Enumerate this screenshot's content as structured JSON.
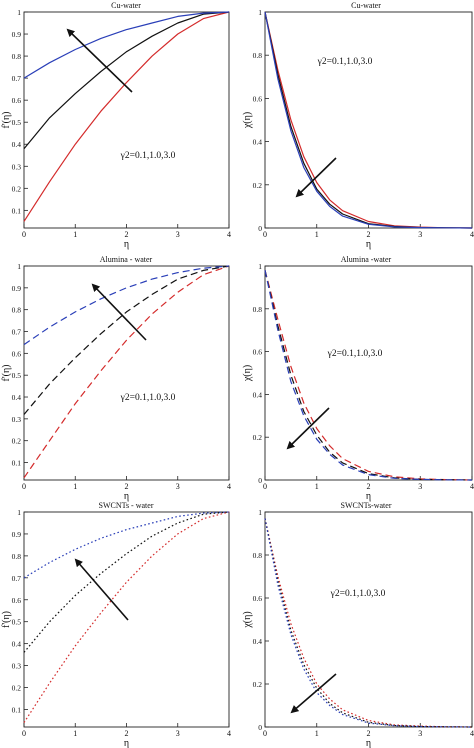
{
  "chart_data": [
    {
      "type": "line",
      "title": "Cu-water",
      "ylabel": "f'(η)",
      "xlabel": "η",
      "annotation": "γ2=0.1,1.0,3.0",
      "linestyle": "solid",
      "xlim": [
        0,
        4
      ],
      "ylim": [
        0.02,
        1.0
      ],
      "xticks": [
        "0",
        "1",
        "2",
        "3",
        "4"
      ],
      "yticks": [
        "0.1",
        "0.2",
        "0.3",
        "0.4",
        "0.5",
        "0.6",
        "0.7",
        "0.8",
        "0.9",
        "1"
      ],
      "arrow_direction": "increasing",
      "x": [
        0,
        0.5,
        1,
        1.5,
        2,
        2.5,
        3,
        3.5,
        4
      ],
      "series": [
        {
          "color": "#d42b2b",
          "values": [
            0.05,
            0.23,
            0.4,
            0.55,
            0.68,
            0.8,
            0.9,
            0.97,
            1.0
          ]
        },
        {
          "color": "#111111",
          "values": [
            0.38,
            0.52,
            0.63,
            0.73,
            0.82,
            0.89,
            0.95,
            0.99,
            1.0
          ]
        },
        {
          "color": "#2a3fb8",
          "values": [
            0.7,
            0.77,
            0.83,
            0.88,
            0.92,
            0.95,
            0.98,
            0.995,
            1.0
          ]
        }
      ]
    },
    {
      "type": "line",
      "title": "Cu-water",
      "ylabel": "χ(η)",
      "xlabel": "η",
      "annotation": "γ2=0.1,1.0,3.0",
      "linestyle": "solid",
      "xlim": [
        0,
        4
      ],
      "ylim": [
        0,
        1.0
      ],
      "xticks": [
        "0",
        "1",
        "2",
        "3",
        "4"
      ],
      "yticks": [
        "0",
        "0.2",
        "0.4",
        "0.6",
        "0.8",
        "1"
      ],
      "arrow_direction": "increasing",
      "x": [
        0,
        0.25,
        0.5,
        0.75,
        1,
        1.25,
        1.5,
        2,
        2.5,
        3,
        3.5,
        4
      ],
      "series": [
        {
          "color": "#d42b2b",
          "values": [
            1.0,
            0.73,
            0.5,
            0.33,
            0.21,
            0.13,
            0.08,
            0.03,
            0.01,
            0.004,
            0.001,
            0
          ]
        },
        {
          "color": "#111111",
          "values": [
            1.0,
            0.71,
            0.47,
            0.3,
            0.18,
            0.11,
            0.065,
            0.02,
            0.007,
            0.002,
            0.001,
            0
          ]
        },
        {
          "color": "#2a3fb8",
          "values": [
            1.0,
            0.69,
            0.45,
            0.28,
            0.17,
            0.1,
            0.055,
            0.017,
            0.005,
            0.002,
            0.001,
            0
          ]
        }
      ]
    },
    {
      "type": "line",
      "title": "Alumina - water",
      "ylabel": "f'(η)",
      "xlabel": "η",
      "annotation": "γ2=0.1,1.0,3.0",
      "linestyle": "dashed",
      "xlim": [
        0,
        4
      ],
      "ylim": [
        0.02,
        1.0
      ],
      "xticks": [
        "0",
        "1",
        "2",
        "3",
        "4"
      ],
      "yticks": [
        "0.1",
        "0.2",
        "0.3",
        "0.4",
        "0.5",
        "0.6",
        "0.7",
        "0.8",
        "0.9",
        "1"
      ],
      "arrow_direction": "increasing",
      "x": [
        0,
        0.5,
        1,
        1.5,
        2,
        2.5,
        3,
        3.5,
        4
      ],
      "series": [
        {
          "color": "#d42b2b",
          "values": [
            0.03,
            0.2,
            0.37,
            0.52,
            0.66,
            0.78,
            0.88,
            0.96,
            1.0
          ]
        },
        {
          "color": "#111111",
          "values": [
            0.32,
            0.46,
            0.58,
            0.69,
            0.79,
            0.87,
            0.94,
            0.98,
            1.0
          ]
        },
        {
          "color": "#2a3fb8",
          "values": [
            0.64,
            0.72,
            0.79,
            0.85,
            0.9,
            0.94,
            0.97,
            0.99,
            1.0
          ]
        }
      ]
    },
    {
      "type": "line",
      "title": "Alumina -water",
      "ylabel": "χ(η)",
      "xlabel": "η",
      "annotation": "γ2=0.1,1.0,3.0",
      "linestyle": "dashed",
      "xlim": [
        0,
        4
      ],
      "ylim": [
        0,
        1.0
      ],
      "xticks": [
        "0",
        "1",
        "2",
        "3",
        "4"
      ],
      "yticks": [
        "0",
        "0.2",
        "0.4",
        "0.6",
        "0.8",
        "1"
      ],
      "arrow_direction": "increasing",
      "x": [
        0,
        0.25,
        0.5,
        0.75,
        1,
        1.25,
        1.5,
        2,
        2.5,
        3,
        3.5,
        4
      ],
      "series": [
        {
          "color": "#d42b2b",
          "values": [
            0.98,
            0.75,
            0.53,
            0.36,
            0.24,
            0.16,
            0.1,
            0.04,
            0.015,
            0.005,
            0.002,
            0
          ]
        },
        {
          "color": "#111111",
          "values": [
            0.98,
            0.72,
            0.49,
            0.32,
            0.21,
            0.13,
            0.08,
            0.03,
            0.01,
            0.003,
            0.001,
            0
          ]
        },
        {
          "color": "#2a3fb8",
          "values": [
            0.98,
            0.7,
            0.46,
            0.3,
            0.19,
            0.12,
            0.07,
            0.025,
            0.008,
            0.003,
            0.001,
            0
          ]
        }
      ]
    },
    {
      "type": "line",
      "title": "SWCNTs - water",
      "ylabel": "f'(η)",
      "xlabel": "η",
      "annotation": "",
      "linestyle": "dotted",
      "xlim": [
        0,
        4
      ],
      "ylim": [
        0.02,
        1.0
      ],
      "xticks": [
        "0",
        "1",
        "2",
        "3",
        "4"
      ],
      "yticks": [
        "0.1",
        "0.2",
        "0.3",
        "0.4",
        "0.5",
        "0.6",
        "0.7",
        "0.8",
        "0.9",
        "1"
      ],
      "arrow_direction": "increasing",
      "x": [
        0,
        0.5,
        1,
        1.5,
        2,
        2.5,
        3,
        3.5,
        4
      ],
      "series": [
        {
          "color": "#d42b2b",
          "values": [
            0.04,
            0.22,
            0.39,
            0.54,
            0.68,
            0.8,
            0.9,
            0.97,
            1.0
          ]
        },
        {
          "color": "#111111",
          "values": [
            0.36,
            0.5,
            0.62,
            0.72,
            0.81,
            0.89,
            0.95,
            0.99,
            1.0
          ]
        },
        {
          "color": "#2a3fb8",
          "values": [
            0.7,
            0.77,
            0.83,
            0.88,
            0.92,
            0.95,
            0.98,
            0.995,
            1.0
          ]
        }
      ]
    },
    {
      "type": "line",
      "title": "SWCNTs-water",
      "ylabel": "χ(η)",
      "xlabel": "η",
      "annotation": "γ2=0.1,1.0,3.0",
      "linestyle": "dotted",
      "xlim": [
        0,
        4
      ],
      "ylim": [
        0,
        1.0
      ],
      "xticks": [
        "0",
        "1",
        "2",
        "3",
        "4"
      ],
      "yticks": [
        "0",
        "0.2",
        "0.4",
        "0.6",
        "0.8",
        "1"
      ],
      "arrow_direction": "increasing",
      "x": [
        0,
        0.25,
        0.5,
        0.75,
        1,
        1.25,
        1.5,
        2,
        2.5,
        3,
        3.5,
        4
      ],
      "series": [
        {
          "color": "#d42b2b",
          "values": [
            0.97,
            0.7,
            0.48,
            0.32,
            0.2,
            0.13,
            0.08,
            0.03,
            0.01,
            0.004,
            0.001,
            0
          ]
        },
        {
          "color": "#111111",
          "values": [
            0.97,
            0.68,
            0.45,
            0.29,
            0.18,
            0.11,
            0.066,
            0.022,
            0.007,
            0.002,
            0.001,
            0
          ]
        },
        {
          "color": "#2a3fb8",
          "values": [
            0.97,
            0.66,
            0.43,
            0.27,
            0.16,
            0.1,
            0.058,
            0.018,
            0.006,
            0.002,
            0.001,
            0
          ]
        }
      ]
    }
  ]
}
